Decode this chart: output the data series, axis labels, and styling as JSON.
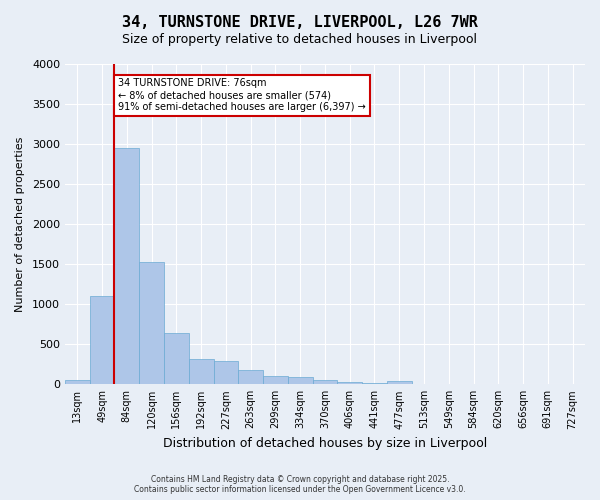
{
  "title_line1": "34, TURNSTONE DRIVE, LIVERPOOL, L26 7WR",
  "title_line2": "Size of property relative to detached houses in Liverpool",
  "xlabel": "Distribution of detached houses by size in Liverpool",
  "ylabel": "Number of detached properties",
  "annotation_line1": "34 TURNSTONE DRIVE: 76sqm",
  "annotation_line2": "← 8% of detached houses are smaller (574)",
  "annotation_line3": "91% of semi-detached houses are larger (6,397) →",
  "footnote_line1": "Contains HM Land Registry data © Crown copyright and database right 2025.",
  "footnote_line2": "Contains public sector information licensed under the Open Government Licence v3.0.",
  "bar_color": "#aec6e8",
  "bar_edge_color": "#6aaad4",
  "vline_color": "#cc0000",
  "annotation_box_color": "#cc0000",
  "background_color": "#e8eef6",
  "grid_color": "#ffffff",
  "ylim": [
    0,
    4000
  ],
  "yticks": [
    0,
    500,
    1000,
    1500,
    2000,
    2500,
    3000,
    3500,
    4000
  ],
  "bin_labels": [
    "13sqm",
    "49sqm",
    "84sqm",
    "120sqm",
    "156sqm",
    "192sqm",
    "227sqm",
    "263sqm",
    "299sqm",
    "334sqm",
    "370sqm",
    "406sqm",
    "441sqm",
    "477sqm",
    "513sqm",
    "549sqm",
    "584sqm",
    "620sqm",
    "656sqm",
    "691sqm",
    "727sqm"
  ],
  "bar_heights": [
    50,
    1100,
    2950,
    1530,
    640,
    310,
    295,
    175,
    100,
    95,
    55,
    30,
    15,
    45,
    3,
    2,
    1,
    1,
    1,
    0,
    0
  ]
}
